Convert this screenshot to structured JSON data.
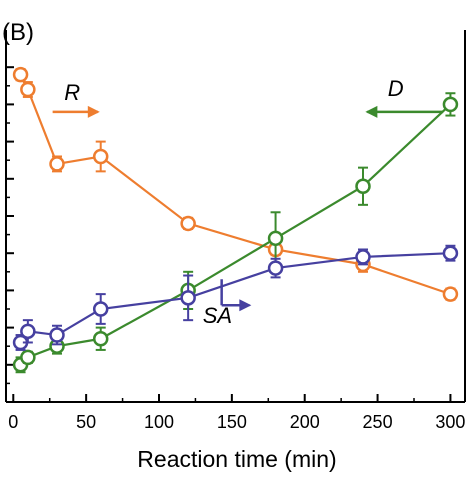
{
  "chart_data": {
    "type": "line",
    "panel_label": "(B)",
    "xlabel": "Reaction time (min)",
    "ylabel": "",
    "xlim": [
      -5,
      310
    ],
    "ylim": [
      0,
      100
    ],
    "x_ticks": [
      0,
      50,
      100,
      150,
      200,
      250,
      300
    ],
    "grid": false,
    "series": [
      {
        "name": "R",
        "color": "#ee7d2f",
        "x": [
          5,
          10,
          30,
          60,
          120,
          180,
          240,
          300
        ],
        "y": [
          88,
          84,
          64,
          66,
          48,
          41,
          37,
          29
        ],
        "err": [
          1.5,
          2,
          2,
          4,
          1.5,
          1.5,
          2,
          1.5
        ]
      },
      {
        "name": "D",
        "color": "#3b8a2d",
        "x": [
          5,
          10,
          30,
          60,
          120,
          180,
          240,
          300
        ],
        "y": [
          10,
          12,
          15,
          17,
          30,
          44,
          58,
          80
        ],
        "err": [
          2,
          1.5,
          2,
          3,
          5,
          7,
          5,
          3
        ]
      },
      {
        "name": "SA",
        "color": "#4640a0",
        "x": [
          5,
          10,
          30,
          60,
          120,
          180,
          240,
          300
        ],
        "y": [
          16,
          19,
          18,
          25,
          28,
          36,
          39,
          40
        ],
        "err": [
          2,
          3,
          2.5,
          4,
          6,
          2.5,
          2,
          2
        ]
      }
    ],
    "annotations": [
      {
        "text": "R",
        "series": "R",
        "arrow": "right"
      },
      {
        "text": "D",
        "series": "D",
        "arrow": "left"
      },
      {
        "text": "SA",
        "series": "SA",
        "arrow": "right"
      }
    ]
  }
}
